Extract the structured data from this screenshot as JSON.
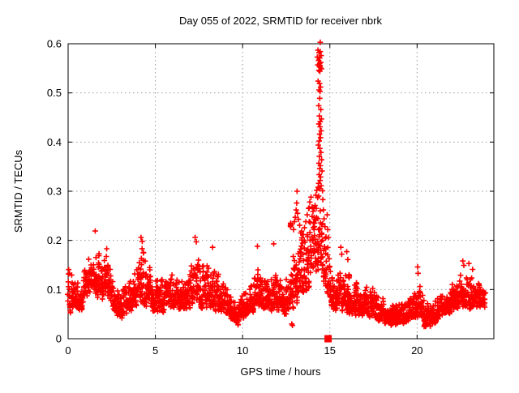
{
  "chart_data": {
    "type": "scatter",
    "title": "Day 055 of 2022, SRMTID for receiver nbrk",
    "xlabel": "GPS time / hours",
    "ylabel": "SRMTID / TECUs",
    "xlim": [
      0,
      24.4
    ],
    "ylim": [
      0,
      0.6
    ],
    "xticks": [
      0,
      5,
      10,
      15,
      20
    ],
    "yticks": [
      0,
      0.1,
      0.2,
      0.3,
      0.4,
      0.5,
      0.6
    ],
    "grid": true,
    "legend": "none",
    "marker": "plus",
    "marker_color": "#ff0000",
    "grid_color": "#9a9a9a",
    "axis_color": "#000000",
    "background": "#ffffff",
    "series_name": "SRMTID",
    "sample_step_hours": 0.01,
    "data_end_hour": 23.9,
    "band_profile": [
      [
        0,
        0.05,
        0.15
      ],
      [
        0.3,
        0.05,
        0.135
      ],
      [
        0.6,
        0.05,
        0.125
      ],
      [
        0.9,
        0.06,
        0.14
      ],
      [
        1.1,
        0.07,
        0.16
      ],
      [
        1.3,
        0.08,
        0.2
      ],
      [
        1.5,
        0.09,
        0.215
      ],
      [
        1.7,
        0.08,
        0.19
      ],
      [
        1.9,
        0.07,
        0.165
      ],
      [
        2.1,
        0.075,
        0.18
      ],
      [
        2.3,
        0.075,
        0.185
      ],
      [
        2.5,
        0.06,
        0.15
      ],
      [
        2.8,
        0.04,
        0.11
      ],
      [
        3.1,
        0.035,
        0.1
      ],
      [
        3.4,
        0.04,
        0.115
      ],
      [
        3.7,
        0.05,
        0.14
      ],
      [
        3.95,
        0.06,
        0.165
      ],
      [
        4.2,
        0.065,
        0.195
      ],
      [
        4.5,
        0.06,
        0.175
      ],
      [
        4.8,
        0.05,
        0.13
      ],
      [
        5.1,
        0.05,
        0.12
      ],
      [
        5.4,
        0.05,
        0.12
      ],
      [
        5.7,
        0.055,
        0.14
      ],
      [
        6,
        0.055,
        0.155
      ],
      [
        6.3,
        0.05,
        0.13
      ],
      [
        6.6,
        0.05,
        0.12
      ],
      [
        6.9,
        0.055,
        0.14
      ],
      [
        7.2,
        0.065,
        0.185
      ],
      [
        7.5,
        0.065,
        0.17
      ],
      [
        7.8,
        0.055,
        0.15
      ],
      [
        8.1,
        0.055,
        0.165
      ],
      [
        8.4,
        0.05,
        0.155
      ],
      [
        8.7,
        0.05,
        0.14
      ],
      [
        9,
        0.04,
        0.12
      ],
      [
        9.3,
        0.03,
        0.1
      ],
      [
        9.6,
        0.025,
        0.08
      ],
      [
        9.9,
        0.025,
        0.09
      ],
      [
        10.2,
        0.04,
        0.11
      ],
      [
        10.5,
        0.05,
        0.13
      ],
      [
        10.8,
        0.055,
        0.16
      ],
      [
        11.1,
        0.05,
        0.14
      ],
      [
        11.4,
        0.05,
        0.13
      ],
      [
        11.7,
        0.055,
        0.15
      ],
      [
        12,
        0.05,
        0.13
      ],
      [
        12.3,
        0.04,
        0.12
      ],
      [
        12.6,
        0.045,
        0.135
      ],
      [
        12.9,
        0.055,
        0.17
      ],
      [
        13.2,
        0.07,
        0.21
      ],
      [
        13.5,
        0.08,
        0.23
      ],
      [
        13.8,
        0.095,
        0.27
      ],
      [
        14.1,
        0.115,
        0.3
      ],
      [
        14.4,
        0.13,
        0.32
      ],
      [
        14.7,
        0.1,
        0.27
      ],
      [
        15,
        0.07,
        0.18
      ],
      [
        15.3,
        0.05,
        0.14
      ],
      [
        15.6,
        0.05,
        0.15
      ],
      [
        15.9,
        0.05,
        0.14
      ],
      [
        16.2,
        0.045,
        0.13
      ],
      [
        16.5,
        0.04,
        0.12
      ],
      [
        16.8,
        0.04,
        0.11
      ],
      [
        17.1,
        0.045,
        0.12
      ],
      [
        17.4,
        0.04,
        0.11
      ],
      [
        17.7,
        0.035,
        0.1
      ],
      [
        18,
        0.03,
        0.09
      ],
      [
        18.3,
        0.025,
        0.08
      ],
      [
        18.6,
        0.02,
        0.07
      ],
      [
        18.9,
        0.025,
        0.08
      ],
      [
        19.2,
        0.03,
        0.08
      ],
      [
        19.5,
        0.03,
        0.09
      ],
      [
        19.8,
        0.035,
        0.105
      ],
      [
        20.1,
        0.04,
        0.12
      ],
      [
        20.4,
        0.02,
        0.085
      ],
      [
        20.7,
        0.018,
        0.075
      ],
      [
        21,
        0.025,
        0.085
      ],
      [
        21.3,
        0.04,
        0.1
      ],
      [
        21.6,
        0.045,
        0.11
      ],
      [
        21.9,
        0.05,
        0.12
      ],
      [
        22.2,
        0.05,
        0.13
      ],
      [
        22.5,
        0.055,
        0.135
      ],
      [
        22.8,
        0.06,
        0.145
      ],
      [
        23.1,
        0.055,
        0.135
      ],
      [
        23.4,
        0.055,
        0.12
      ],
      [
        23.7,
        0.06,
        0.115
      ],
      [
        23.9,
        0.06,
        0.105
      ]
    ],
    "peak_points": [
      [
        12.74,
        0.23
      ],
      [
        12.76,
        0.233
      ],
      [
        12.75,
        0.228
      ],
      [
        12.77,
        0.231
      ],
      [
        12.75,
        0.235
      ],
      [
        12.82,
        0.03
      ],
      [
        12.86,
        0.027
      ],
      [
        12.92,
        0.222
      ],
      [
        12.97,
        0.238
      ],
      [
        13.02,
        0.247
      ],
      [
        13.07,
        0.262
      ],
      [
        13.1,
        0.276
      ],
      [
        13.12,
        0.3
      ],
      [
        13.15,
        0.255
      ],
      [
        13.2,
        0.243
      ],
      [
        13.27,
        0.231
      ],
      [
        13.33,
        0.215
      ],
      [
        13.4,
        0.205
      ],
      [
        13.48,
        0.212
      ],
      [
        13.55,
        0.226
      ],
      [
        13.62,
        0.238
      ],
      [
        13.7,
        0.252
      ],
      [
        13.78,
        0.265
      ],
      [
        13.85,
        0.278
      ],
      [
        13.92,
        0.288
      ],
      [
        13.98,
        0.268
      ],
      [
        14.05,
        0.226
      ],
      [
        14.1,
        0.247
      ],
      [
        14.15,
        0.271
      ],
      [
        14.2,
        0.292
      ],
      [
        14.25,
        0.302
      ],
      [
        14.3,
        0.287
      ],
      [
        14.22,
        0.265
      ],
      [
        14.17,
        0.243
      ],
      [
        14.12,
        0.228
      ],
      [
        14.33,
        0.308
      ],
      [
        14.42,
        0.346
      ],
      [
        14.55,
        0.341
      ],
      [
        14.39,
        0.334
      ],
      [
        14.47,
        0.329
      ],
      [
        14.44,
        0.322
      ],
      [
        14.36,
        0.316
      ],
      [
        14.5,
        0.311
      ],
      [
        14.42,
        0.305
      ],
      [
        14.58,
        0.301
      ],
      [
        14.34,
        0.394
      ],
      [
        14.43,
        0.387
      ],
      [
        14.49,
        0.379
      ],
      [
        14.4,
        0.371
      ],
      [
        14.53,
        0.364
      ],
      [
        14.37,
        0.357
      ],
      [
        14.46,
        0.352
      ],
      [
        14.37,
        0.437
      ],
      [
        14.44,
        0.431
      ],
      [
        14.5,
        0.423
      ],
      [
        14.41,
        0.416
      ],
      [
        14.47,
        0.409
      ],
      [
        14.39,
        0.402
      ],
      [
        14.42,
        0.489
      ],
      [
        14.36,
        0.474
      ],
      [
        14.48,
        0.466
      ],
      [
        14.4,
        0.453
      ],
      [
        14.52,
        0.447
      ],
      [
        14.45,
        0.442
      ],
      [
        14.33,
        0.524
      ],
      [
        14.41,
        0.519
      ],
      [
        14.47,
        0.512
      ],
      [
        14.38,
        0.506
      ],
      [
        14.44,
        0.503
      ],
      [
        14.32,
        0.587
      ],
      [
        14.38,
        0.582
      ],
      [
        14.45,
        0.584
      ],
      [
        14.5,
        0.576
      ],
      [
        14.28,
        0.573
      ],
      [
        14.42,
        0.571
      ],
      [
        14.35,
        0.566
      ],
      [
        14.48,
        0.562
      ],
      [
        14.31,
        0.557
      ],
      [
        14.4,
        0.554
      ],
      [
        14.46,
        0.552
      ],
      [
        14.52,
        0.549
      ],
      [
        14.37,
        0.546
      ],
      [
        14.43,
        0.544
      ],
      [
        14.41,
        0.56
      ],
      [
        14.44,
        0.556
      ],
      [
        14.45,
        0.603
      ],
      [
        14.6,
        0.283
      ],
      [
        14.63,
        0.262
      ],
      [
        14.67,
        0.244
      ],
      [
        14.72,
        0.228
      ],
      [
        14.78,
        0.207
      ],
      [
        14.85,
        0.252
      ],
      [
        14.88,
        0.222
      ],
      [
        14.92,
        0.206
      ],
      [
        15.63,
        0.186
      ],
      [
        15.68,
        0.172
      ],
      [
        15.97,
        0.177
      ],
      [
        16.03,
        0.161
      ],
      [
        16.08,
        0.127
      ],
      [
        16.1,
        0.13
      ],
      [
        16.12,
        0.127
      ],
      [
        16.1,
        0.124
      ],
      [
        16.11,
        0.128
      ],
      [
        1.55,
        0.219
      ],
      [
        4.18,
        0.206
      ],
      [
        4.25,
        0.198
      ],
      [
        7.28,
        0.206
      ],
      [
        7.35,
        0.197
      ],
      [
        8.28,
        0.186
      ],
      [
        10.85,
        0.188
      ],
      [
        11.78,
        0.193
      ],
      [
        20.03,
        0.146
      ],
      [
        20.06,
        0.133
      ],
      [
        22.62,
        0.158
      ],
      [
        22.68,
        0.149
      ],
      [
        22.97,
        0.153
      ],
      [
        23.18,
        0.141
      ]
    ],
    "axis_marker": {
      "x": 14.9,
      "y": 0,
      "shape": "filled-square",
      "color": "#ff0000"
    }
  }
}
